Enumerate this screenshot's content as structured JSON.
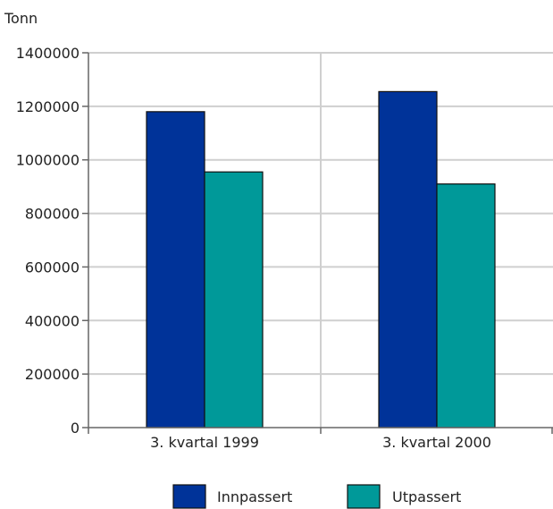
{
  "chart_data": {
    "type": "bar",
    "ylabel": "Tonn",
    "ylim": [
      0,
      1400000
    ],
    "yticks": [
      0,
      200000,
      400000,
      600000,
      800000,
      1000000,
      1200000,
      1400000
    ],
    "categories": [
      "3. kvartal 1999",
      "3. kvartal 2000"
    ],
    "series": [
      {
        "name": "Innpassert",
        "color": "#003399",
        "values": [
          1180000,
          1255000
        ]
      },
      {
        "name": "Utpassert",
        "color": "#009999",
        "values": [
          955000,
          910000
        ]
      }
    ],
    "grid": true,
    "legend": "bottom"
  }
}
